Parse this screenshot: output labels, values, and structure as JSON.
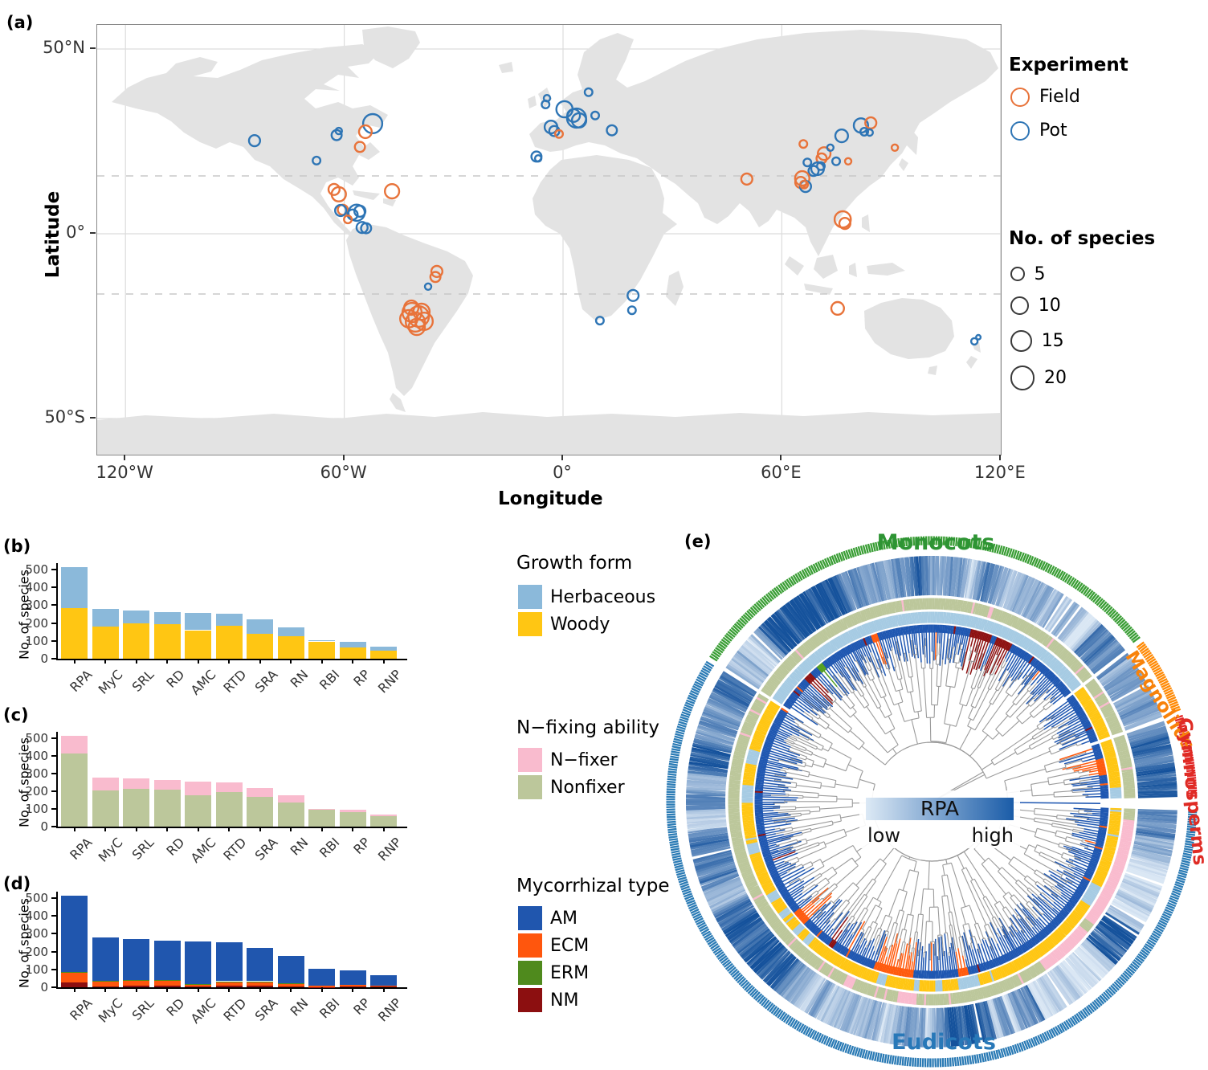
{
  "figure": {
    "panel_labels": {
      "a": "(a)",
      "b": "(b)",
      "c": "(c)",
      "d": "(d)",
      "e": "(e)"
    }
  },
  "panel_a": {
    "x_axis": {
      "title": "Longitude",
      "ticks": [
        {
          "label": "120°W",
          "lon": -120
        },
        {
          "label": "60°W",
          "lon": -60
        },
        {
          "label": "0°",
          "lon": 0
        },
        {
          "label": "60°E",
          "lon": 60
        },
        {
          "label": "120°E",
          "lon": 120
        }
      ]
    },
    "y_axis": {
      "title": "Latitude",
      "ticks": [
        {
          "label": "50°N",
          "lat": 50
        },
        {
          "label": "0°",
          "lat": 0
        },
        {
          "label": "50°S",
          "lat": -50
        }
      ]
    },
    "legend_experiment": {
      "title": "Experiment",
      "items": [
        {
          "label": "Field",
          "color": "#E8733A"
        },
        {
          "label": "Pot",
          "color": "#2E75B5"
        }
      ]
    },
    "legend_size": {
      "title": "No. of species",
      "items": [
        5,
        10,
        15,
        20
      ]
    }
  },
  "legends": {
    "growth": {
      "title": "Growth form",
      "items": [
        {
          "label": "Herbaceous",
          "color": "#8BB9DA"
        },
        {
          "label": "Woody",
          "color": "#FFC613"
        }
      ]
    },
    "nfix": {
      "title": "N−fixing ability",
      "items": [
        {
          "label": "N−fixer",
          "color": "#F9BBCE"
        },
        {
          "label": "Nonfixer",
          "color": "#BCC79B"
        }
      ]
    },
    "myc": {
      "title": "Mycorrhizal type",
      "items": [
        {
          "label": "AM",
          "color": "#2056AE"
        },
        {
          "label": "ECM",
          "color": "#FF560D"
        },
        {
          "label": "ERM",
          "color": "#4F8A1D"
        },
        {
          "label": "NM",
          "color": "#8C0F10"
        }
      ]
    }
  },
  "chart_data": [
    {
      "type": "scatter",
      "name": "study-sites-map",
      "xlabel": "Longitude",
      "ylabel": "Latitude",
      "size_encoding": "No. of species",
      "color_encoding": "Experiment",
      "xlim": [
        -124,
        124
      ],
      "ylim": [
        -56.5,
        50
      ],
      "points": [
        {
          "lon": -84.6,
          "lat": 25.2,
          "n": 6,
          "exp": "Pot"
        },
        {
          "lon": -62.1,
          "lat": 26.7,
          "n": 5,
          "exp": "Pot"
        },
        {
          "lon": -61.5,
          "lat": 27.8,
          "n": 2,
          "exp": "Pot"
        },
        {
          "lon": -52.2,
          "lat": 29.8,
          "n": 18,
          "exp": "Pot"
        },
        {
          "lon": -54.2,
          "lat": 27.6,
          "n": 8,
          "exp": "Field"
        },
        {
          "lon": -55.7,
          "lat": 23.5,
          "n": 5,
          "exp": "Field"
        },
        {
          "lon": -67.6,
          "lat": 19.8,
          "n": 3,
          "exp": "Pot"
        },
        {
          "lon": -62.8,
          "lat": 12.0,
          "n": 6,
          "exp": "Field"
        },
        {
          "lon": -61.5,
          "lat": 10.7,
          "n": 10,
          "exp": "Field"
        },
        {
          "lon": -46.9,
          "lat": 11.5,
          "n": 10,
          "exp": "Field"
        },
        {
          "lon": -60.4,
          "lat": 6.5,
          "n": 5,
          "exp": "Field"
        },
        {
          "lon": -61.0,
          "lat": 6.3,
          "n": 6,
          "exp": "Pot"
        },
        {
          "lon": -56.6,
          "lat": 5.7,
          "n": 13,
          "exp": "Pot"
        },
        {
          "lon": -57.7,
          "lat": 5.2,
          "n": 5,
          "exp": "Pot"
        },
        {
          "lon": -55.7,
          "lat": 6.1,
          "n": 6,
          "exp": "Pot"
        },
        {
          "lon": -59.0,
          "lat": 3.9,
          "n": 3,
          "exp": "Field"
        },
        {
          "lon": -55.1,
          "lat": 1.7,
          "n": 6,
          "exp": "Pot"
        },
        {
          "lon": -54.0,
          "lat": 1.5,
          "n": 5,
          "exp": "Pot"
        },
        {
          "lon": -34.6,
          "lat": -10.2,
          "n": 6,
          "exp": "Field"
        },
        {
          "lon": -35.0,
          "lat": -11.7,
          "n": 5,
          "exp": "Field"
        },
        {
          "lon": -37.0,
          "lat": -14.3,
          "n": 2,
          "exp": "Pot"
        },
        {
          "lon": -41.4,
          "lat": -21.3,
          "n": 18,
          "exp": "Field"
        },
        {
          "lon": -39.6,
          "lat": -22.4,
          "n": 21,
          "exp": "Field"
        },
        {
          "lon": -42.3,
          "lat": -23.0,
          "n": 15,
          "exp": "Field"
        },
        {
          "lon": -40.5,
          "lat": -23.9,
          "n": 18,
          "exp": "Field"
        },
        {
          "lon": -38.8,
          "lat": -21.1,
          "n": 13,
          "exp": "Field"
        },
        {
          "lon": -41.6,
          "lat": -20.0,
          "n": 10,
          "exp": "Field"
        },
        {
          "lon": -40.1,
          "lat": -25.2,
          "n": 13,
          "exp": "Field"
        },
        {
          "lon": -38.1,
          "lat": -23.7,
          "n": 15,
          "exp": "Field"
        },
        {
          "lon": -4.4,
          "lat": 36.7,
          "n": 2,
          "exp": "Pot"
        },
        {
          "lon": -4.8,
          "lat": 35.0,
          "n": 3,
          "exp": "Pot"
        },
        {
          "lon": 0.4,
          "lat": 33.7,
          "n": 13,
          "exp": "Pot"
        },
        {
          "lon": 3.7,
          "lat": 31.3,
          "n": 18,
          "exp": "Pot"
        },
        {
          "lon": 2.9,
          "lat": 32.0,
          "n": 8,
          "exp": "Pot"
        },
        {
          "lon": 4.4,
          "lat": 30.7,
          "n": 10,
          "exp": "Pot"
        },
        {
          "lon": 7.0,
          "lat": 38.3,
          "n": 3,
          "exp": "Pot"
        },
        {
          "lon": 8.8,
          "lat": 32.0,
          "n": 3,
          "exp": "Pot"
        },
        {
          "lon": 13.4,
          "lat": 28.0,
          "n": 5,
          "exp": "Pot"
        },
        {
          "lon": -3.3,
          "lat": 28.9,
          "n": 8,
          "exp": "Pot"
        },
        {
          "lon": -2.4,
          "lat": 27.8,
          "n": 5,
          "exp": "Pot"
        },
        {
          "lon": -1.1,
          "lat": 27.0,
          "n": 3,
          "exp": "Field"
        },
        {
          "lon": -7.3,
          "lat": 20.9,
          "n": 5,
          "exp": "Pot"
        },
        {
          "lon": -6.8,
          "lat": 20.4,
          "n": 2,
          "exp": "Pot"
        },
        {
          "lon": 19.2,
          "lat": -16.7,
          "n": 6,
          "exp": "Pot"
        },
        {
          "lon": 18.9,
          "lat": -20.7,
          "n": 3,
          "exp": "Pot"
        },
        {
          "lon": 10.1,
          "lat": -23.5,
          "n": 3,
          "exp": "Pot"
        },
        {
          "lon": 50.4,
          "lat": 14.8,
          "n": 6,
          "exp": "Field"
        },
        {
          "lon": 81.7,
          "lat": 29.3,
          "n": 10,
          "exp": "Pot"
        },
        {
          "lon": 84.4,
          "lat": 30.0,
          "n": 6,
          "exp": "Field"
        },
        {
          "lon": 82.6,
          "lat": 27.6,
          "n": 3,
          "exp": "Pot"
        },
        {
          "lon": 84.1,
          "lat": 27.4,
          "n": 2,
          "exp": "Pot"
        },
        {
          "lon": 65.9,
          "lat": 24.3,
          "n": 3,
          "exp": "Field"
        },
        {
          "lon": 76.4,
          "lat": 26.5,
          "n": 8,
          "exp": "Pot"
        },
        {
          "lon": 71.6,
          "lat": 21.7,
          "n": 8,
          "exp": "Field"
        },
        {
          "lon": 70.9,
          "lat": 20.4,
          "n": 5,
          "exp": "Field"
        },
        {
          "lon": 73.3,
          "lat": 23.3,
          "n": 2,
          "exp": "Pot"
        },
        {
          "lon": 67.0,
          "lat": 19.3,
          "n": 3,
          "exp": "Pot"
        },
        {
          "lon": 69.8,
          "lat": 17.6,
          "n": 8,
          "exp": "Pot"
        },
        {
          "lon": 68.7,
          "lat": 17.0,
          "n": 5,
          "exp": "Pot"
        },
        {
          "lon": 70.7,
          "lat": 18.3,
          "n": 3,
          "exp": "Pot"
        },
        {
          "lon": 74.9,
          "lat": 19.6,
          "n": 3,
          "exp": "Pot"
        },
        {
          "lon": 78.2,
          "lat": 19.6,
          "n": 2,
          "exp": "Field"
        },
        {
          "lon": 65.6,
          "lat": 15.0,
          "n": 10,
          "exp": "Field"
        },
        {
          "lon": 65.2,
          "lat": 13.9,
          "n": 6,
          "exp": "Field"
        },
        {
          "lon": 66.5,
          "lat": 12.8,
          "n": 6,
          "exp": "Pot"
        },
        {
          "lon": 66.1,
          "lat": 13.3,
          "n": 3,
          "exp": "Field"
        },
        {
          "lon": 91.0,
          "lat": 23.3,
          "n": 2,
          "exp": "Field"
        },
        {
          "lon": 76.7,
          "lat": 3.9,
          "n": 13,
          "exp": "Field"
        },
        {
          "lon": 77.3,
          "lat": 2.8,
          "n": 6,
          "exp": "Field"
        },
        {
          "lon": 75.3,
          "lat": -20.2,
          "n": 8,
          "exp": "Field"
        },
        {
          "lon": 112.8,
          "lat": -29.1,
          "n": 2,
          "exp": "Pot"
        },
        {
          "lon": 113.9,
          "lat": -28.0,
          "n": 1,
          "exp": "Pot"
        }
      ]
    },
    {
      "type": "bar",
      "stacked": true,
      "panel": "b",
      "legend_title": "Growth form",
      "categories": [
        "RPA",
        "MyC",
        "SRL",
        "RD",
        "AMC",
        "RTD",
        "SRA",
        "RN",
        "RBI",
        "RP",
        "RNP"
      ],
      "series": [
        {
          "name": "Woody",
          "color": "#FFC613",
          "values": [
            285,
            182,
            197,
            192,
            160,
            185,
            140,
            127,
            97,
            65,
            45
          ]
        },
        {
          "name": "Herbaceous",
          "color": "#8BB9DA",
          "values": [
            230,
            96,
            75,
            70,
            95,
            67,
            80,
            51,
            5,
            30,
            23
          ]
        }
      ],
      "ylabel": "No. of species",
      "yticks": [
        0,
        100,
        200,
        300,
        400,
        500
      ],
      "ylim": [
        0,
        530
      ]
    },
    {
      "type": "bar",
      "stacked": true,
      "panel": "c",
      "legend_title": "N−fixing ability",
      "categories": [
        "RPA",
        "MyC",
        "SRL",
        "RD",
        "AMC",
        "RTD",
        "SRA",
        "RN",
        "RBI",
        "RP",
        "RNP"
      ],
      "series": [
        {
          "name": "Nonfixer",
          "color": "#BCC79B",
          "values": [
            412,
            203,
            213,
            208,
            178,
            197,
            170,
            135,
            95,
            80,
            60
          ]
        },
        {
          "name": "N−fixer",
          "color": "#F9BBCE",
          "values": [
            103,
            75,
            59,
            54,
            77,
            55,
            50,
            43,
            7,
            15,
            8
          ]
        }
      ],
      "ylabel": "No. of species",
      "yticks": [
        0,
        100,
        200,
        300,
        400,
        500
      ],
      "ylim": [
        0,
        530
      ]
    },
    {
      "type": "bar",
      "stacked": true,
      "panel": "d",
      "legend_title": "Mycorrhizal type",
      "categories": [
        "RPA",
        "MyC",
        "SRL",
        "RD",
        "AMC",
        "RTD",
        "SRA",
        "RN",
        "RBI",
        "RP",
        "RNP"
      ],
      "series": [
        {
          "name": "NM",
          "color": "#8C0F10",
          "values": [
            28,
            6,
            7,
            9,
            3,
            7,
            7,
            4,
            2,
            3,
            3
          ]
        },
        {
          "name": "ECM",
          "color": "#FF560D",
          "values": [
            55,
            30,
            32,
            28,
            13,
            25,
            25,
            18,
            8,
            10,
            7
          ]
        },
        {
          "name": "ERM",
          "color": "#4F8A1D",
          "values": [
            3,
            2,
            2,
            2,
            1,
            2,
            2,
            1,
            0,
            0,
            0
          ]
        },
        {
          "name": "AM",
          "color": "#2056AE",
          "values": [
            429,
            240,
            231,
            223,
            238,
            218,
            186,
            155,
            92,
            82,
            58
          ]
        }
      ],
      "ylabel": "No. of species",
      "yticks": [
        0,
        100,
        200,
        300,
        400,
        500
      ],
      "ylim": [
        0,
        530
      ]
    },
    {
      "type": "circular_phylogeny",
      "name": "phylogeny-rpa",
      "center_legend": {
        "label": "RPA",
        "low": "low",
        "high": "high",
        "gradient": [
          "#DCE9F5",
          "#1A5CA8"
        ]
      },
      "rings_outer_to_inner": [
        "clade",
        "rpa_heatmap",
        "n_fixing",
        "growth_form",
        "mycorrhizal_tip"
      ],
      "clades": [
        {
          "name": "Monocots",
          "color": "#3A9E35",
          "label_color": "#2E9434",
          "start": -57,
          "end": 52
        },
        {
          "name": "Magnoliids",
          "color": "#FF8A05",
          "label_color": "#F8820A",
          "start": 52.8,
          "end": 70
        },
        {
          "name": "Gymnosperms",
          "color": "#E32426",
          "label_color": "#DF2B24",
          "start": 70.8,
          "end": 89
        },
        {
          "name": "Eudicots",
          "color": "#2B7BB5",
          "label_color": "#2878B8",
          "start": 92,
          "end": 302.5
        }
      ],
      "ring_colors": {
        "rpa_low": "#E2EDF8",
        "rpa_high": "#15529C",
        "nfixer": "#F9BBCE",
        "nonfixer": "#BCC79B",
        "herbaceous": "#A6CBE3",
        "woody": "#FFC613",
        "AM": "#1F57B1",
        "ECM": "#FF5A0D",
        "ERM": "#55A021",
        "NM": "#8D1111"
      },
      "tip_clusters": [
        {
          "type": "NM",
          "from": 13,
          "to": 20
        },
        {
          "type": "NM",
          "from": 21.5,
          "to": 27
        },
        {
          "type": "NM",
          "from": -46,
          "to": -43
        },
        {
          "type": "ERM",
          "from": -40.5,
          "to": -38.5
        },
        {
          "type": "ECM",
          "from": -20,
          "to": -18
        },
        {
          "type": "ECM",
          "from": 75.5,
          "to": 81
        },
        {
          "type": "ECM",
          "from": 168,
          "to": 171
        },
        {
          "type": "ECM",
          "from": 186,
          "to": 199
        },
        {
          "type": "NM",
          "from": 214,
          "to": 216
        },
        {
          "type": "ECM",
          "from": 226,
          "to": 231
        }
      ],
      "nfix_pink_runs": [
        {
          "from": 96,
          "to": 127
        },
        {
          "from": 130,
          "to": 146
        },
        {
          "from": 185,
          "to": 190
        },
        {
          "from": 203,
          "to": 206
        }
      ],
      "growth_yellow_prob": [
        0.05,
        0.85,
        0.92,
        0.66
      ]
    }
  ]
}
